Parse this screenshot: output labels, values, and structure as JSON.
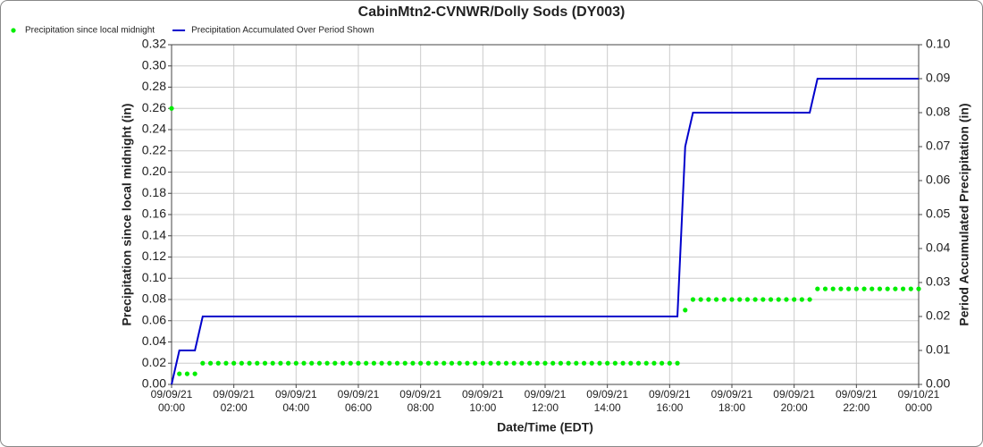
{
  "chart_data": {
    "type": "line",
    "title": "CabinMtn2-CVNWR/Dolly Sods (DY003)",
    "x_label": "Date/Time (EDT)",
    "y_label": "Precipitation since local midnight (in)",
    "y2_label": "Period Accumulated Precipitation (in)",
    "x": [
      "09/09/21 00:00",
      "09/09/21 00:15",
      "09/09/21 00:30",
      "09/09/21 00:45",
      "09/09/21 01:00",
      "09/09/21 01:15",
      "09/09/21 01:30",
      "09/09/21 01:45",
      "09/09/21 02:00",
      "09/09/21 02:15",
      "09/09/21 02:30",
      "09/09/21 02:45",
      "09/09/21 03:00",
      "09/09/21 03:15",
      "09/09/21 03:30",
      "09/09/21 03:45",
      "09/09/21 04:00",
      "09/09/21 04:15",
      "09/09/21 04:30",
      "09/09/21 04:45",
      "09/09/21 05:00",
      "09/09/21 05:15",
      "09/09/21 05:30",
      "09/09/21 05:45",
      "09/09/21 06:00",
      "09/09/21 06:15",
      "09/09/21 06:30",
      "09/09/21 06:45",
      "09/09/21 07:00",
      "09/09/21 07:15",
      "09/09/21 07:30",
      "09/09/21 07:45",
      "09/09/21 08:00",
      "09/09/21 08:15",
      "09/09/21 08:30",
      "09/09/21 08:45",
      "09/09/21 09:00",
      "09/09/21 09:15",
      "09/09/21 09:30",
      "09/09/21 09:45",
      "09/09/21 10:00",
      "09/09/21 10:15",
      "09/09/21 10:30",
      "09/09/21 10:45",
      "09/09/21 11:00",
      "09/09/21 11:15",
      "09/09/21 11:30",
      "09/09/21 11:45",
      "09/09/21 12:00",
      "09/09/21 12:15",
      "09/09/21 12:30",
      "09/09/21 12:45",
      "09/09/21 13:00",
      "09/09/21 13:15",
      "09/09/21 13:30",
      "09/09/21 13:45",
      "09/09/21 14:00",
      "09/09/21 14:15",
      "09/09/21 14:30",
      "09/09/21 14:45",
      "09/09/21 15:00",
      "09/09/21 15:15",
      "09/09/21 15:30",
      "09/09/21 15:45",
      "09/09/21 16:00",
      "09/09/21 16:15",
      "09/09/21 16:30",
      "09/09/21 16:45",
      "09/09/21 17:00",
      "09/09/21 17:15",
      "09/09/21 17:30",
      "09/09/21 17:45",
      "09/09/21 18:00",
      "09/09/21 18:15",
      "09/09/21 18:30",
      "09/09/21 18:45",
      "09/09/21 19:00",
      "09/09/21 19:15",
      "09/09/21 19:30",
      "09/09/21 19:45",
      "09/09/21 20:00",
      "09/09/21 20:15",
      "09/09/21 20:30",
      "09/09/21 20:45",
      "09/09/21 21:00",
      "09/09/21 21:15",
      "09/09/21 21:30",
      "09/09/21 21:45",
      "09/09/21 22:00",
      "09/09/21 22:15",
      "09/09/21 22:30",
      "09/09/21 22:45",
      "09/09/21 23:00",
      "09/09/21 23:15",
      "09/09/21 23:30",
      "09/09/21 23:45",
      "09/10/21 00:00"
    ],
    "series": [
      {
        "name": "Precipitation since local midnight",
        "color": "#00ee00",
        "style": "dots",
        "axis": "y",
        "values": [
          0.26,
          0.01,
          0.01,
          0.01,
          0.02,
          0.02,
          0.02,
          0.02,
          0.02,
          0.02,
          0.02,
          0.02,
          0.02,
          0.02,
          0.02,
          0.02,
          0.02,
          0.02,
          0.02,
          0.02,
          0.02,
          0.02,
          0.02,
          0.02,
          0.02,
          0.02,
          0.02,
          0.02,
          0.02,
          0.02,
          0.02,
          0.02,
          0.02,
          0.02,
          0.02,
          0.02,
          0.02,
          0.02,
          0.02,
          0.02,
          0.02,
          0.02,
          0.02,
          0.02,
          0.02,
          0.02,
          0.02,
          0.02,
          0.02,
          0.02,
          0.02,
          0.02,
          0.02,
          0.02,
          0.02,
          0.02,
          0.02,
          0.02,
          0.02,
          0.02,
          0.02,
          0.02,
          0.02,
          0.02,
          0.02,
          0.02,
          0.07,
          0.08,
          0.08,
          0.08,
          0.08,
          0.08,
          0.08,
          0.08,
          0.08,
          0.08,
          0.08,
          0.08,
          0.08,
          0.08,
          0.08,
          0.08,
          0.08,
          0.09,
          0.09,
          0.09,
          0.09,
          0.09,
          0.09,
          0.09,
          0.09,
          0.09,
          0.09,
          0.09,
          0.09,
          0.09,
          0.09
        ]
      },
      {
        "name": "Precipitation Accumulated Over Period Shown",
        "color": "#0000cc",
        "style": "line",
        "axis": "y2",
        "values": [
          0,
          0.01,
          0.01,
          0.01,
          0.02,
          0.02,
          0.02,
          0.02,
          0.02,
          0.02,
          0.02,
          0.02,
          0.02,
          0.02,
          0.02,
          0.02,
          0.02,
          0.02,
          0.02,
          0.02,
          0.02,
          0.02,
          0.02,
          0.02,
          0.02,
          0.02,
          0.02,
          0.02,
          0.02,
          0.02,
          0.02,
          0.02,
          0.02,
          0.02,
          0.02,
          0.02,
          0.02,
          0.02,
          0.02,
          0.02,
          0.02,
          0.02,
          0.02,
          0.02,
          0.02,
          0.02,
          0.02,
          0.02,
          0.02,
          0.02,
          0.02,
          0.02,
          0.02,
          0.02,
          0.02,
          0.02,
          0.02,
          0.02,
          0.02,
          0.02,
          0.02,
          0.02,
          0.02,
          0.02,
          0.02,
          0.02,
          0.07,
          0.08,
          0.08,
          0.08,
          0.08,
          0.08,
          0.08,
          0.08,
          0.08,
          0.08,
          0.08,
          0.08,
          0.08,
          0.08,
          0.08,
          0.08,
          0.08,
          0.09,
          0.09,
          0.09,
          0.09,
          0.09,
          0.09,
          0.09,
          0.09,
          0.09,
          0.09,
          0.09,
          0.09,
          0.09,
          0.09
        ]
      }
    ],
    "xlim": [
      "09/09/21 00:00",
      "09/10/21 00:00"
    ],
    "xticks": [
      "09/09/21 00:00",
      "09/09/21 02:00",
      "09/09/21 04:00",
      "09/09/21 06:00",
      "09/09/21 08:00",
      "09/09/21 10:00",
      "09/09/21 12:00",
      "09/09/21 14:00",
      "09/09/21 16:00",
      "09/09/21 18:00",
      "09/09/21 20:00",
      "09/09/21 22:00",
      "09/10/21 00:00"
    ],
    "ylim": [
      0,
      0.32
    ],
    "yticks": [
      {
        "value": 0,
        "label": "0.00"
      },
      {
        "value": 0.02,
        "label": "0.02"
      },
      {
        "value": 0.04,
        "label": "0.04"
      },
      {
        "value": 0.06,
        "label": "0.06"
      },
      {
        "value": 0.08,
        "label": "0.08"
      },
      {
        "value": 0.1,
        "label": "0.10"
      },
      {
        "value": 0.12,
        "label": "0.12"
      },
      {
        "value": 0.14,
        "label": "0.14"
      },
      {
        "value": 0.16,
        "label": "0.16"
      },
      {
        "value": 0.18,
        "label": "0.18"
      },
      {
        "value": 0.2,
        "label": "0.20"
      },
      {
        "value": 0.22,
        "label": "0.22"
      },
      {
        "value": 0.24,
        "label": "0.24"
      },
      {
        "value": 0.26,
        "label": "0.26"
      },
      {
        "value": 0.28,
        "label": "0.28"
      },
      {
        "value": 0.3,
        "label": "0.30"
      },
      {
        "value": 0.32,
        "label": "0.32"
      }
    ],
    "y2lim": [
      0,
      0.1
    ],
    "y2ticks": [
      {
        "value": 0,
        "label": "0.00"
      },
      {
        "value": 0.01,
        "label": "0.01"
      },
      {
        "value": 0.02,
        "label": "0.02"
      },
      {
        "value": 0.03,
        "label": "0.03"
      },
      {
        "value": 0.04,
        "label": "0.04"
      },
      {
        "value": 0.05,
        "label": "0.05"
      },
      {
        "value": 0.06,
        "label": "0.06"
      },
      {
        "value": 0.07,
        "label": "0.07"
      },
      {
        "value": 0.08,
        "label": "0.08"
      },
      {
        "value": 0.09,
        "label": "0.09"
      },
      {
        "value": 0.1,
        "label": "0.10"
      }
    ],
    "grid": true,
    "legend": "top-left"
  }
}
